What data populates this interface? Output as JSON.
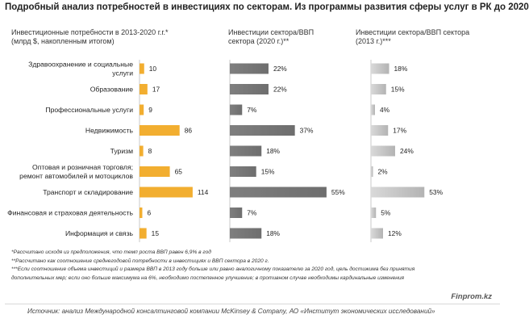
{
  "title": "Подробный анализ потребностей в инвестициях по секторам. Из программы развития сферы услуг в РК до 2020",
  "headers": {
    "col1": {
      "line1": "Инвестиционные потребности в 2013-2020 г.г.*",
      "line2": "(млрд $, накопленным итогом)"
    },
    "col2": {
      "line1": "Инвестиции сектора/ВВП",
      "line2": "сектора (2020 г.)**"
    },
    "col3": {
      "line1": "Инвестиции сектора/ВВП сектора",
      "line2": "(2013 г.)***"
    }
  },
  "chart_data": {
    "type": "bar",
    "categories": [
      [
        "Здравоохранение и социальные",
        "услуги"
      ],
      [
        "Образование"
      ],
      [
        "Профессиональные услуги"
      ],
      [
        "Недвижимость"
      ],
      [
        "Туризм"
      ],
      [
        "Оптовая и розничная торговля;",
        "ремонт автомобилей и мотоциклов"
      ],
      [
        "Транспорт и складирование"
      ],
      [
        "Финансовая и страховая деятельность"
      ],
      [
        "Информация и связь"
      ]
    ],
    "series": [
      {
        "values": [
          10,
          17,
          9,
          86,
          8,
          65,
          114,
          6,
          15
        ],
        "labels": [
          "10",
          "17",
          "9",
          "86",
          "8",
          "65",
          "114",
          "6",
          "15"
        ],
        "color": "#f2ae30"
      },
      {
        "values": [
          22,
          22,
          7,
          37,
          18,
          15,
          55,
          7,
          18
        ],
        "labels": [
          "22%",
          "22%",
          "7%",
          "37%",
          "18%",
          "15%",
          "55%",
          "7%",
          "18%"
        ],
        "color": "#7f7f7f"
      },
      {
        "values": [
          18,
          15,
          4,
          17,
          24,
          2,
          53,
          5,
          12
        ],
        "labels": [
          "18%",
          "15%",
          "4%",
          "17%",
          "24%",
          "2%",
          "53%",
          "5%",
          "12%"
        ],
        "color": "#bfbfbf"
      }
    ]
  },
  "notes": [
    "*Рассчитано исходя из предположения, что темп роста ВВП равен 6,9% в год",
    "**Рассчитано как соотношение среднегодовой потребности в инвестициях и ВВП сектора в 2020 г.",
    "***Если соотношение объема инвестиций и размера ВВП в 2013 году больше или равно аналогичному показателю за 2020 год, цель достижима без принятия",
    "дополнительных мер; если оно больше максимума на 6%, необходимо постепенное улучшение; в противном случае необходимы кардинальные изменения"
  ],
  "brand": "Finprom.kz",
  "source": "Источник:  анализ Международной  консалтинговой компании McKinsey & Company, АО «Институт экономических исследований»"
}
